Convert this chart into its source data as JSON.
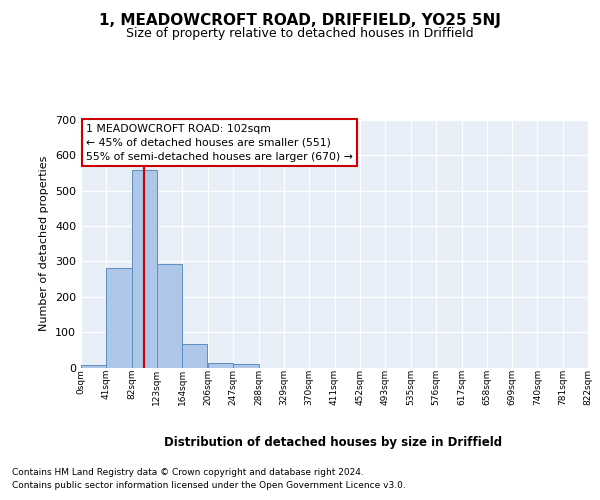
{
  "title": "1, MEADOWCROFT ROAD, DRIFFIELD, YO25 5NJ",
  "subtitle": "Size of property relative to detached houses in Driffield",
  "xlabel": "Distribution of detached houses by size in Driffield",
  "ylabel": "Number of detached properties",
  "bin_edges": [
    0,
    41,
    82,
    123,
    164,
    206,
    247,
    288,
    329,
    370,
    411,
    452,
    493,
    535,
    576,
    617,
    658,
    699,
    740,
    781,
    822
  ],
  "bar_heights": [
    8,
    282,
    560,
    293,
    67,
    14,
    9,
    0,
    0,
    0,
    0,
    0,
    0,
    0,
    0,
    0,
    0,
    0,
    0,
    0
  ],
  "bar_color": "#aec6e8",
  "bar_edgecolor": "#5a8fbe",
  "red_line_x": 102,
  "annotation_text": "1 MEADOWCROFT ROAD: 102sqm\n← 45% of detached houses are smaller (551)\n55% of semi-detached houses are larger (670) →",
  "ylim": [
    0,
    700
  ],
  "yticks": [
    0,
    100,
    200,
    300,
    400,
    500,
    600,
    700
  ],
  "plot_bg_color": "#e8eef7",
  "footer_line1": "Contains HM Land Registry data © Crown copyright and database right 2024.",
  "footer_line2": "Contains public sector information licensed under the Open Government Licence v3.0.",
  "tick_labels": [
    "0sqm",
    "41sqm",
    "82sqm",
    "123sqm",
    "164sqm",
    "206sqm",
    "247sqm",
    "288sqm",
    "329sqm",
    "370sqm",
    "411sqm",
    "452sqm",
    "493sqm",
    "535sqm",
    "576sqm",
    "617sqm",
    "658sqm",
    "699sqm",
    "740sqm",
    "781sqm",
    "822sqm"
  ]
}
